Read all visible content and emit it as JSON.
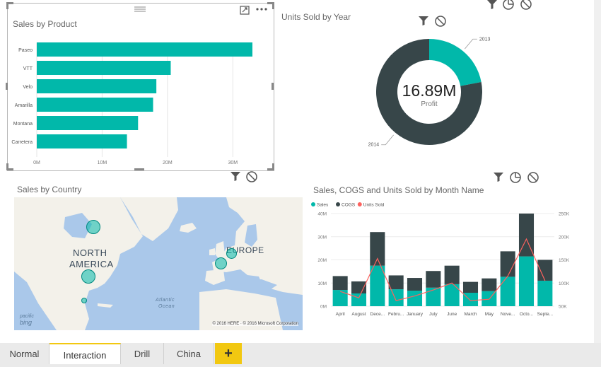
{
  "visuals": {
    "sales_by_product": {
      "title": "Sales by  Product",
      "chart_data": {
        "type": "bar",
        "orientation": "horizontal",
        "categories": [
          "Paseo",
          "VTT",
          "Velo",
          "Amarilla",
          "Montana",
          "Carretera"
        ],
        "values": [
          33,
          20.5,
          18.3,
          17.8,
          15.5,
          13.8
        ],
        "x_ticks": [
          "0M",
          "10M",
          "20M",
          "30M"
        ],
        "xlim": [
          0,
          33
        ],
        "color": "#01b8aa"
      }
    },
    "units_by_year": {
      "title": "Units Sold by Year",
      "chart_data": {
        "type": "pie",
        "donut": true,
        "slices": [
          {
            "label": "2013",
            "share": 0.22,
            "color": "#01b8aa"
          },
          {
            "label": "2014",
            "share": 0.78,
            "color": "#374649"
          }
        ],
        "center_value": "16.89M",
        "center_label": "Profit"
      }
    },
    "sales_by_country": {
      "title": "Sales by Country",
      "labels": {
        "north": "NORTH",
        "america": "AMERICA",
        "europe": "EUROPE",
        "atlantic": "Atlantic",
        "ocean": "Ocean"
      },
      "copyright": "© 2016 HERE · © 2016 Microsoft Corporation",
      "logo_top": "pacific",
      "logo_bottom": "bing"
    },
    "sales_cogs": {
      "title": "Sales, COGS and Units Sold by  Month Name",
      "chart_data": {
        "type": "bar",
        "stacked": true,
        "combo_line": true,
        "categories": [
          "April",
          "August",
          "Dece...",
          "Febru...",
          "January",
          "July",
          "June",
          "March",
          "May",
          "Nove...",
          "Octo...",
          "Septe..."
        ],
        "series": [
          {
            "name": "Sales",
            "color": "#01b8aa",
            "values": [
              7,
              5.5,
              17.5,
              7.3,
              6.7,
              8,
              9.5,
              5.8,
              6.5,
              12.7,
              21.5,
              11
            ]
          },
          {
            "name": "COGS",
            "color": "#374649",
            "values": [
              6,
              5.2,
              14.5,
              6,
              5.5,
              7.2,
              8,
              4.7,
              5.5,
              11,
              18.5,
              9
            ]
          },
          {
            "name": "Units Sold",
            "color": "#fd625e",
            "axis": "right",
            "values": [
              82,
              68,
              153,
              62,
              72,
              85,
              100,
              62,
              65,
              115,
              195,
              105
            ]
          }
        ],
        "y_ticks": [
          "0M",
          "10M",
          "20M",
          "30M",
          "40M"
        ],
        "ylim": [
          0,
          40
        ],
        "y2_ticks": [
          "50K",
          "100K",
          "150K",
          "200K",
          "250K"
        ],
        "y2lim": [
          50,
          250
        ]
      }
    }
  },
  "tabs": {
    "items": [
      {
        "label": "Normal"
      },
      {
        "label": "Interaction"
      },
      {
        "label": "Drill"
      },
      {
        "label": "China"
      }
    ],
    "add_label": "+"
  }
}
